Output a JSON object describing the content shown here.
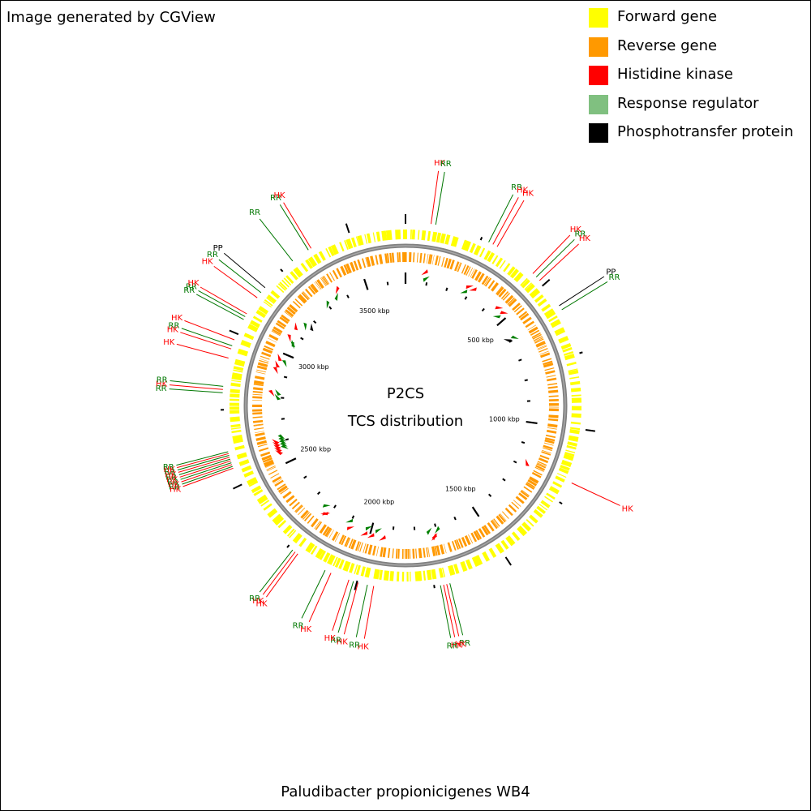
{
  "credit": "Image generated by CGView",
  "legend": [
    {
      "label": "Forward gene",
      "color": "#ffff00"
    },
    {
      "label": "Reverse gene",
      "color": "#ff9900"
    },
    {
      "label": "Histidine kinase",
      "color": "#ff0000"
    },
    {
      "label": "Response regulator",
      "color": "#80c080"
    },
    {
      "label": "Phosphotransfer protein",
      "color": "#000000"
    }
  ],
  "center_title": "P2CS",
  "center_subtitle": "TCS distribution",
  "organism": "Paludibacter propionicigenes WB4",
  "colors": {
    "forward": "#ffff00",
    "reverse": "#ff9900",
    "hk": "#ff0000",
    "rr_marker": "#008000",
    "rr_label": "#007700",
    "pp": "#000000",
    "backbone": "#808080"
  },
  "genome": {
    "total_kbp": 3685,
    "tick_labels": [
      {
        "label": "500 kbp",
        "kbp": 500
      },
      {
        "label": "1000 kbp",
        "kbp": 1000
      },
      {
        "label": "1500 kbp",
        "kbp": 1500
      },
      {
        "label": "2000 kbp",
        "kbp": 2000
      },
      {
        "label": "2500 kbp",
        "kbp": 2500
      },
      {
        "label": "3000 kbp",
        "kbp": 3000
      },
      {
        "label": "3500 kbp",
        "kbp": 3500
      }
    ]
  },
  "features": [
    {
      "type": "HK",
      "label": "HK",
      "angle": 8
    },
    {
      "type": "RR",
      "label": "RR",
      "angle": 9.5
    },
    {
      "type": "RR",
      "label": "RR",
      "angle": 27
    },
    {
      "type": "HK",
      "label": "HK",
      "angle": 28.5
    },
    {
      "type": "HK",
      "label": "HK",
      "angle": 30
    },
    {
      "type": "HK",
      "label": "HK",
      "angle": 44
    },
    {
      "type": "RR",
      "label": "RR",
      "angle": 45.5
    },
    {
      "type": "HK",
      "label": "HK",
      "angle": 47
    },
    {
      "type": "PP",
      "label": "PP",
      "angle": 57
    },
    {
      "type": "RR",
      "label": "RR",
      "angle": 58.5
    },
    {
      "type": "HK",
      "label": "HK",
      "angle": 115
    },
    {
      "type": "RR",
      "label": "RR",
      "angle": 166
    },
    {
      "type": "HK",
      "label": "HK",
      "angle": 167
    },
    {
      "type": "HK",
      "label": "HK",
      "angle": 168
    },
    {
      "type": "RR",
      "label": "RR",
      "angle": 169
    },
    {
      "type": "HK",
      "label": "HK",
      "angle": 190
    },
    {
      "type": "RR",
      "label": "RR",
      "angle": 192
    },
    {
      "type": "HK",
      "label": "HK",
      "angle": 195
    },
    {
      "type": "RR",
      "label": "RR",
      "angle": 196.5
    },
    {
      "type": "HK",
      "label": "HK",
      "angle": 198
    },
    {
      "type": "HK",
      "label": "HK",
      "angle": 204
    },
    {
      "type": "RR",
      "label": "RR",
      "angle": 206
    },
    {
      "type": "HK",
      "label": "HK",
      "angle": 216
    },
    {
      "type": "HK",
      "label": "HK",
      "angle": 217
    },
    {
      "type": "RR",
      "label": "RR",
      "angle": 218
    },
    {
      "type": "HK",
      "label": "HK",
      "angle": 250
    },
    {
      "type": "RR",
      "label": "RR",
      "angle": 250.6
    },
    {
      "type": "HK",
      "label": "HK",
      "angle": 251.2
    },
    {
      "type": "RR",
      "label": "RR",
      "angle": 251.8
    },
    {
      "type": "HK",
      "label": "HK",
      "angle": 252.4
    },
    {
      "type": "RR",
      "label": "RR",
      "angle": 253
    },
    {
      "type": "HK",
      "label": "HK",
      "angle": 253.6
    },
    {
      "type": "RR",
      "label": "RR",
      "angle": 254.2
    },
    {
      "type": "HK",
      "label": "HK",
      "angle": 254.8
    },
    {
      "type": "RR",
      "label": "RR",
      "angle": 255.4
    },
    {
      "type": "RR",
      "label": "RR",
      "angle": 274
    },
    {
      "type": "HK",
      "label": "HK",
      "angle": 275
    },
    {
      "type": "RR",
      "label": "RR",
      "angle": 276
    },
    {
      "type": "HK",
      "label": "HK",
      "angle": 285
    },
    {
      "type": "HK",
      "label": "HK",
      "angle": 288
    },
    {
      "type": "RR",
      "label": "RR",
      "angle": 289
    },
    {
      "type": "HK",
      "label": "HK",
      "angle": 291
    },
    {
      "type": "RR",
      "label": "RR",
      "angle": 298
    },
    {
      "type": "RR",
      "label": "RR",
      "angle": 299
    },
    {
      "type": "HK",
      "label": "HK",
      "angle": 300
    },
    {
      "type": "HK",
      "label": "HK",
      "angle": 306
    },
    {
      "type": "RR",
      "label": "RR",
      "angle": 308
    },
    {
      "type": "PP",
      "label": "PP",
      "angle": 310
    },
    {
      "type": "RR",
      "label": "RR",
      "angle": 322
    },
    {
      "type": "RR",
      "label": "RR",
      "angle": 328
    },
    {
      "type": "HK",
      "label": "HK",
      "angle": 329
    }
  ]
}
